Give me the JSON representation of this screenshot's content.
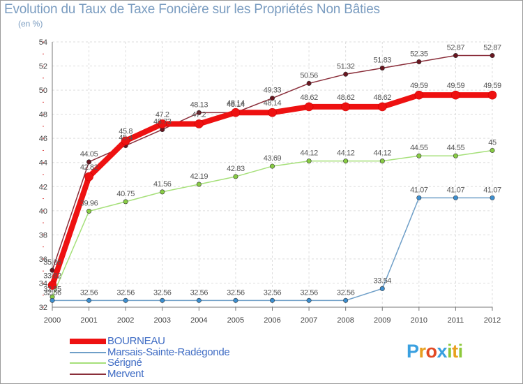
{
  "title": "Evolution du Taux de Taxe Foncière sur les Propriétés Non Bâties",
  "unit_label": "(en %)",
  "logo_text": "Proxiti",
  "chart_data": {
    "type": "line",
    "x": [
      "2000",
      "2001",
      "2002",
      "2003",
      "2004",
      "2005",
      "2006",
      "2007",
      "2008",
      "2009",
      "2010",
      "2011",
      "2012"
    ],
    "ylim": [
      32,
      54
    ],
    "yticks": [
      32,
      34,
      36,
      38,
      40,
      42,
      44,
      46,
      48,
      50,
      52,
      54
    ],
    "grid": true,
    "legend_position": "bottom-left",
    "series": [
      {
        "name": "BOURNEAU",
        "color": "#ee1111",
        "marker": "#ee1111",
        "width": 8,
        "values": [
          33.82,
          42.82,
          45.8,
          47.2,
          47.2,
          48.14,
          48.14,
          48.62,
          48.62,
          48.62,
          49.59,
          49.59,
          49.59
        ],
        "labels": [
          "33.82",
          "42.82",
          "45.8",
          "47.2",
          "47.2",
          "48.14",
          "48.14",
          "48.62",
          "48.62",
          "48.62",
          "49.59",
          "49.59",
          "49.59"
        ]
      },
      {
        "name": "Marsais-Sainte-Radégonde",
        "color": "#6f9fc8",
        "marker": "#3d8fd0",
        "width": 1.5,
        "values": [
          32.56,
          32.56,
          32.56,
          32.56,
          32.56,
          32.56,
          32.56,
          32.56,
          32.56,
          33.54,
          41.07,
          41.07,
          41.07
        ],
        "labels": [
          "32.56",
          "32.56",
          "32.56",
          "32.56",
          "32.56",
          "32.56",
          "32.56",
          "32.56",
          "32.56",
          "33.54",
          "41.07",
          "41.07",
          "41.07"
        ]
      },
      {
        "name": "Sérigné",
        "color": "#a6e07a",
        "marker": "#88cc44",
        "width": 1.5,
        "values": [
          32.85,
          39.96,
          40.75,
          41.56,
          42.19,
          42.83,
          43.69,
          44.12,
          44.12,
          44.12,
          44.55,
          44.55,
          45
        ],
        "labels": [
          "32.85",
          "39.96",
          "40.75",
          "41.56",
          "42.19",
          "42.83",
          "43.69",
          "44.12",
          "44.12",
          "44.12",
          "44.55",
          "44.55",
          "45"
        ]
      },
      {
        "name": "Mervent",
        "color": "#8a2e3a",
        "marker": "#6a1620",
        "width": 1.5,
        "values": [
          35.06,
          44.05,
          45.4,
          46.73,
          48.13,
          48.14,
          49.33,
          50.56,
          51.32,
          51.83,
          52.35,
          52.87,
          52.87
        ],
        "labels": [
          "35.06",
          "44.05",
          "45.4",
          "46.73",
          "48.13",
          "48.14",
          "49.33",
          "50.56",
          "51.32",
          "51.83",
          "52.35",
          "52.87",
          "52.87"
        ]
      }
    ]
  }
}
